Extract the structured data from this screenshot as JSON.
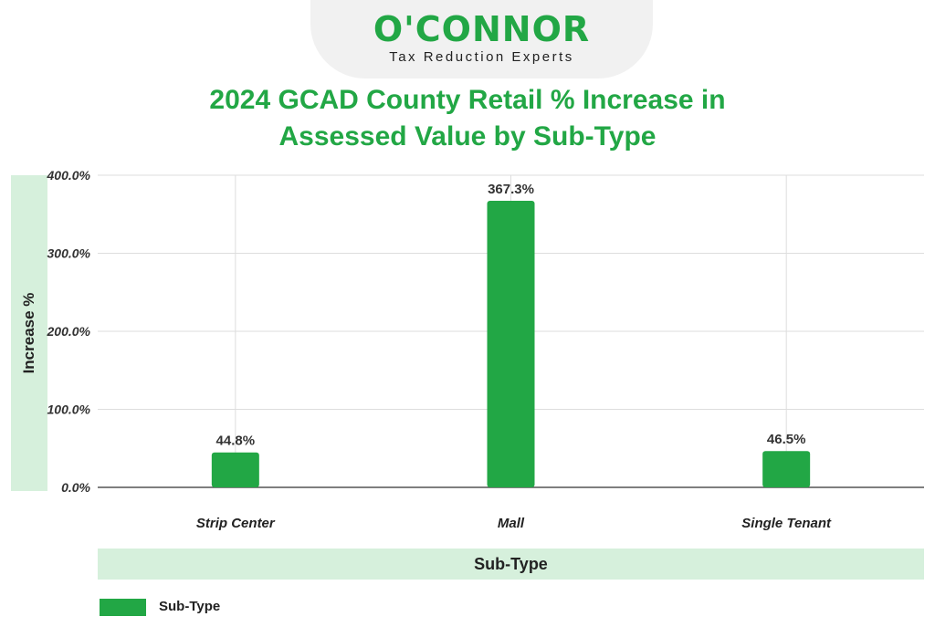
{
  "brand": {
    "logo_name": "O'CONNOR",
    "tagline": "Tax Reduction Experts"
  },
  "colors": {
    "accent": "#22a745",
    "band": "#d6f0dc",
    "grid": "#dddddd",
    "axis": "#555555"
  },
  "chart_data": {
    "type": "bar",
    "title": "2024 GCAD County Retail % Increase in Assessed Value by Sub-Type",
    "title_lines": [
      "2024 GCAD County Retail % Increase in",
      "Assessed Value by Sub-Type"
    ],
    "xlabel": "Sub-Type",
    "ylabel": "Increase %",
    "categories": [
      "Strip Center",
      "Mall",
      "Single Tenant"
    ],
    "series": [
      {
        "name": "Sub-Type",
        "values": [
          44.8,
          367.3,
          46.5
        ]
      }
    ],
    "data_labels": [
      "44.8%",
      "367.3%",
      "46.5%"
    ],
    "ylim": [
      0,
      400
    ],
    "yticks": [
      0,
      100,
      200,
      300,
      400
    ],
    "ytick_labels": [
      "0.0%",
      "100.0%",
      "200.0%",
      "300.0%",
      "400.0%"
    ],
    "grid": true,
    "legend_position": "bottom-left"
  }
}
